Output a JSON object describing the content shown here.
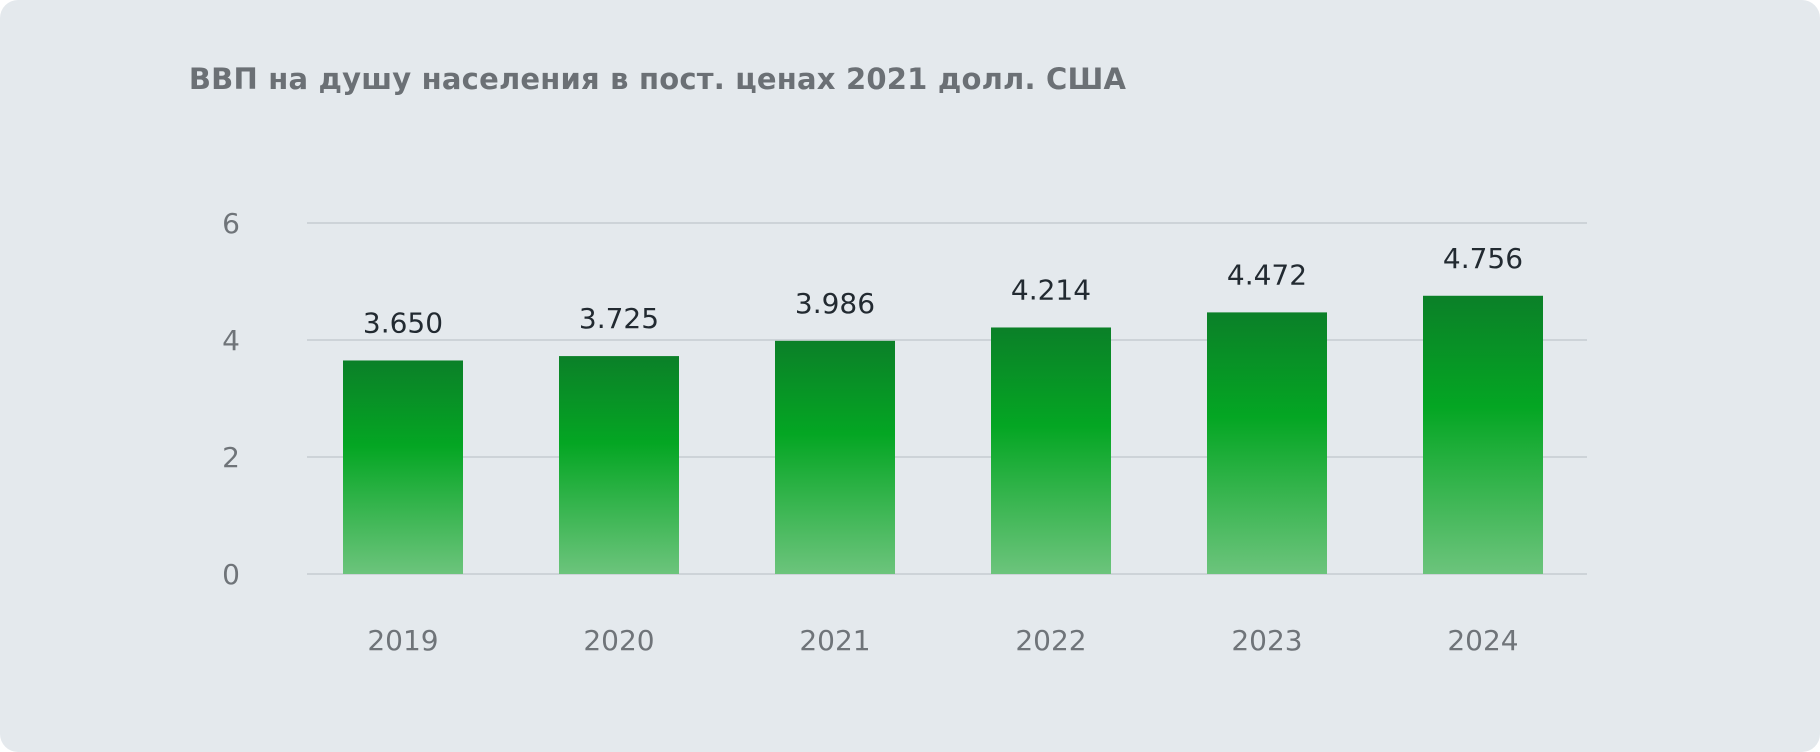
{
  "chart_data": {
    "type": "bar",
    "title": "ВВП на душу населения в пост. ценах 2021 долл. США",
    "categories": [
      "2019",
      "2020",
      "2021",
      "2022",
      "2023",
      "2024"
    ],
    "series": [
      {
        "values": [
          3.65,
          3.725,
          3.986,
          4.214,
          4.472,
          4.756
        ],
        "data_labels": [
          "3.650",
          "3.725",
          "3.986",
          "4.214",
          "4.472",
          "4.756"
        ]
      }
    ],
    "y_ticks": [
      "0",
      "2",
      "4",
      "6"
    ],
    "ylim": [
      0,
      6
    ],
    "grid": true,
    "legend": "none",
    "colors": {
      "background": "#e4e9ed",
      "bar_top": "#0b8028",
      "bar_mid": "#04a623",
      "bar_bottom": "#6cc47c",
      "grid": "#cdd3d8"
    }
  }
}
